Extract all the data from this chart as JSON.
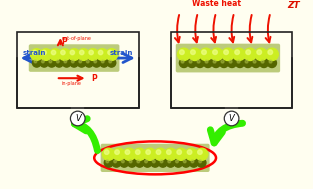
{
  "bg_color": "#fffef0",
  "arrow_green": "#33ee00",
  "arrow_red": "#ee1100",
  "arrow_blue": "#2255cc",
  "waste_heat_color": "#ee1100",
  "ZT_color": "#dd1100",
  "strain_color": "#2255cc",
  "P_color": "#ee1100",
  "waste_heat_label": "Waste heat",
  "ZT_label": "ZT",
  "strain_label": "strain",
  "in_plane_label": "in-plane",
  "out_of_plane_label": "out-of-plane",
  "P_label": "P",
  "ball_yellow": "#ccee22",
  "ball_yellow_hi": "#eeff88",
  "ball_dark": "#556600",
  "ball_mid": "#99bb00",
  "slab_color": "#7a9a08"
}
